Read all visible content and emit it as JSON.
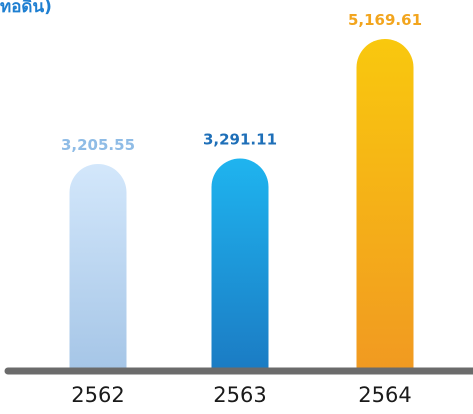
{
  "chart_data": {
    "type": "bar",
    "title": "ทอดิน)",
    "categories": [
      "2562",
      "2563",
      "2564"
    ],
    "values": [
      3205.55,
      3291.11,
      5169.61
    ],
    "value_labels": [
      "3,205.55",
      "3,291.11",
      "5,169.61"
    ],
    "ylim": [
      0,
      5169.61
    ],
    "grid": false,
    "xlabel": "",
    "ylabel": "",
    "colors": {
      "title": "#1e7fd1",
      "axis": "#6b6b6b",
      "category_text": "#1a1a1a",
      "bar_label": [
        "#8fbce6",
        "#1e6fb8",
        "#f2a51e"
      ],
      "bar_top": [
        "#d3e7fb",
        "#1fb4ef",
        "#f9c80e"
      ],
      "bar_bottom": [
        "#a6c6e7",
        "#1b7cc4",
        "#f19a21"
      ]
    }
  }
}
